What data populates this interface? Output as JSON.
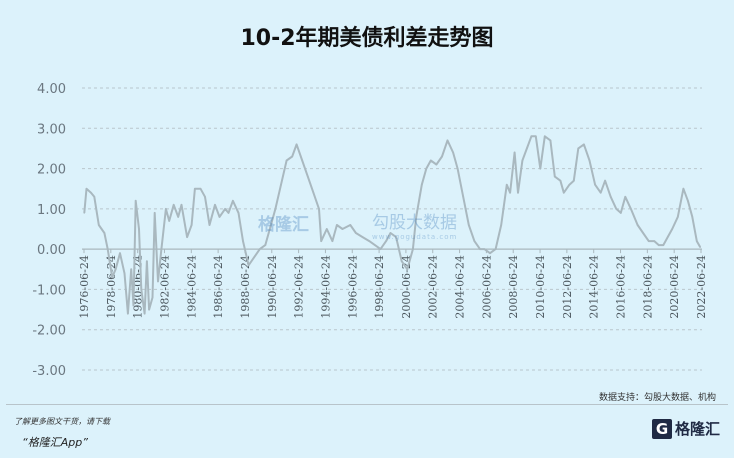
{
  "title": "10-2年期美债利差走势图",
  "source": "数据支持：勾股大数据、机构",
  "footer": {
    "promo_line1": "了解更多图文干货，请下载",
    "promo_line2": "“格隆汇App”",
    "logo_text": "格隆汇"
  },
  "watermarks": {
    "center_logo": "格隆汇",
    "data_brand": "勾股大数据",
    "data_url": "www.gogudata.com"
  },
  "chart_data": {
    "type": "line",
    "title": "10-2年期美债利差走势图",
    "xlabel": "",
    "ylabel": "",
    "ylim": [
      -3,
      4
    ],
    "yticks": [
      "4.00",
      "3.00",
      "2.00",
      "1.00",
      "0.00",
      "-1.00",
      "-2.00",
      "-3.00"
    ],
    "xticks": [
      "1976-06-24",
      "1978-06-24",
      "1980-06-24",
      "1982-06-24",
      "1984-06-24",
      "1986-06-24",
      "1988-06-24",
      "1990-06-24",
      "1992-06-24",
      "1994-06-24",
      "1996-06-24",
      "1998-06-24",
      "2000-06-24",
      "2002-06-24",
      "2004-06-24",
      "2006-06-24",
      "2008-06-24",
      "2010-06-24",
      "2012-06-24",
      "2014-06-24",
      "2016-06-24",
      "2018-06-24",
      "2020-06-24",
      "2022-06-24"
    ],
    "xlim": [
      "1976-06-24",
      "2022-06-24"
    ],
    "grid": "horizontal dashed",
    "line_color": "#a9b8bf",
    "series": [
      {
        "points": [
          [
            "1976-07",
            0.9
          ],
          [
            "1976-09",
            1.5
          ],
          [
            "1977-01",
            1.4
          ],
          [
            "1977-04",
            1.3
          ],
          [
            "1977-08",
            0.6
          ],
          [
            "1978-01",
            0.4
          ],
          [
            "1978-04",
            0.0
          ],
          [
            "1978-08",
            -0.7
          ],
          [
            "1978-11",
            -0.5
          ],
          [
            "1979-03",
            -0.1
          ],
          [
            "1979-07",
            -0.6
          ],
          [
            "1979-10",
            -1.6
          ],
          [
            "1980-01",
            -0.5
          ],
          [
            "1980-03",
            -1.4
          ],
          [
            "1980-05",
            1.2
          ],
          [
            "1980-08",
            0.5
          ],
          [
            "1980-10",
            -1.0
          ],
          [
            "1981-01",
            -1.6
          ],
          [
            "1981-03",
            -0.3
          ],
          [
            "1981-05",
            -1.5
          ],
          [
            "1981-08",
            -1.2
          ],
          [
            "1981-10",
            0.9
          ],
          [
            "1982-01",
            -0.8
          ],
          [
            "1982-04",
            0.0
          ],
          [
            "1982-08",
            1.0
          ],
          [
            "1982-11",
            0.7
          ],
          [
            "1983-03",
            1.1
          ],
          [
            "1983-07",
            0.8
          ],
          [
            "1983-10",
            1.1
          ],
          [
            "1984-03",
            0.3
          ],
          [
            "1984-07",
            0.6
          ],
          [
            "1984-10",
            1.5
          ],
          [
            "1985-03",
            1.5
          ],
          [
            "1985-07",
            1.3
          ],
          [
            "1985-11",
            0.6
          ],
          [
            "1986-04",
            1.1
          ],
          [
            "1986-08",
            0.8
          ],
          [
            "1987-01",
            1.0
          ],
          [
            "1987-04",
            0.9
          ],
          [
            "1987-08",
            1.2
          ],
          [
            "1988-01",
            0.9
          ],
          [
            "1988-05",
            0.2
          ],
          [
            "1988-10",
            -0.4
          ],
          [
            "1989-03",
            -0.2
          ],
          [
            "1989-08",
            0.0
          ],
          [
            "1990-01",
            0.1
          ],
          [
            "1990-05",
            0.5
          ],
          [
            "1990-10",
            1.0
          ],
          [
            "1991-03",
            1.6
          ],
          [
            "1991-08",
            2.2
          ],
          [
            "1992-01",
            2.3
          ],
          [
            "1992-05",
            2.6
          ],
          [
            "1992-10",
            2.2
          ],
          [
            "1993-03",
            1.8
          ],
          [
            "1993-08",
            1.4
          ],
          [
            "1994-01",
            1.0
          ],
          [
            "1994-03",
            0.2
          ],
          [
            "1994-08",
            0.5
          ],
          [
            "1995-01",
            0.2
          ],
          [
            "1995-05",
            0.6
          ],
          [
            "1995-10",
            0.5
          ],
          [
            "1996-05",
            0.6
          ],
          [
            "1996-10",
            0.4
          ],
          [
            "1997-04",
            0.3
          ],
          [
            "1997-10",
            0.2
          ],
          [
            "1998-03",
            0.1
          ],
          [
            "1998-08",
            0.0
          ],
          [
            "1999-01",
            0.2
          ],
          [
            "1999-05",
            0.4
          ],
          [
            "1999-10",
            0.3
          ],
          [
            "2000-03",
            -0.3
          ],
          [
            "2000-08",
            -0.5
          ],
          [
            "2001-01",
            0.0
          ],
          [
            "2001-04",
            0.8
          ],
          [
            "2001-09",
            1.6
          ],
          [
            "2002-01",
            2.0
          ],
          [
            "2002-05",
            2.2
          ],
          [
            "2002-10",
            2.1
          ],
          [
            "2003-03",
            2.3
          ],
          [
            "2003-08",
            2.7
          ],
          [
            "2004-01",
            2.4
          ],
          [
            "2004-05",
            2.0
          ],
          [
            "2004-10",
            1.3
          ],
          [
            "2005-03",
            0.6
          ],
          [
            "2005-08",
            0.2
          ],
          [
            "2006-01",
            0.0
          ],
          [
            "2006-05",
            0.0
          ],
          [
            "2006-10",
            -0.1
          ],
          [
            "2007-03",
            0.0
          ],
          [
            "2007-08",
            0.6
          ],
          [
            "2008-01",
            1.6
          ],
          [
            "2008-04",
            1.4
          ],
          [
            "2008-08",
            2.4
          ],
          [
            "2008-11",
            1.4
          ],
          [
            "2009-03",
            2.2
          ],
          [
            "2009-07",
            2.5
          ],
          [
            "2009-11",
            2.8
          ],
          [
            "2010-03",
            2.8
          ],
          [
            "2010-07",
            2.0
          ],
          [
            "2010-11",
            2.8
          ],
          [
            "2011-04",
            2.7
          ],
          [
            "2011-08",
            1.8
          ],
          [
            "2012-01",
            1.7
          ],
          [
            "2012-04",
            1.4
          ],
          [
            "2012-09",
            1.6
          ],
          [
            "2013-01",
            1.7
          ],
          [
            "2013-05",
            2.5
          ],
          [
            "2013-10",
            2.6
          ],
          [
            "2014-03",
            2.2
          ],
          [
            "2014-08",
            1.6
          ],
          [
            "2015-01",
            1.4
          ],
          [
            "2015-05",
            1.7
          ],
          [
            "2015-10",
            1.3
          ],
          [
            "2016-03",
            1.0
          ],
          [
            "2016-07",
            0.9
          ],
          [
            "2016-11",
            1.3
          ],
          [
            "2017-04",
            1.0
          ],
          [
            "2017-10",
            0.6
          ],
          [
            "2018-03",
            0.4
          ],
          [
            "2018-08",
            0.2
          ],
          [
            "2019-01",
            0.2
          ],
          [
            "2019-05",
            0.1
          ],
          [
            "2019-09",
            0.1
          ],
          [
            "2020-01",
            0.3
          ],
          [
            "2020-05",
            0.5
          ],
          [
            "2020-10",
            0.8
          ],
          [
            "2021-03",
            1.5
          ],
          [
            "2021-07",
            1.2
          ],
          [
            "2021-11",
            0.8
          ],
          [
            "2022-03",
            0.2
          ],
          [
            "2022-06",
            0.05
          ]
        ]
      }
    ]
  }
}
